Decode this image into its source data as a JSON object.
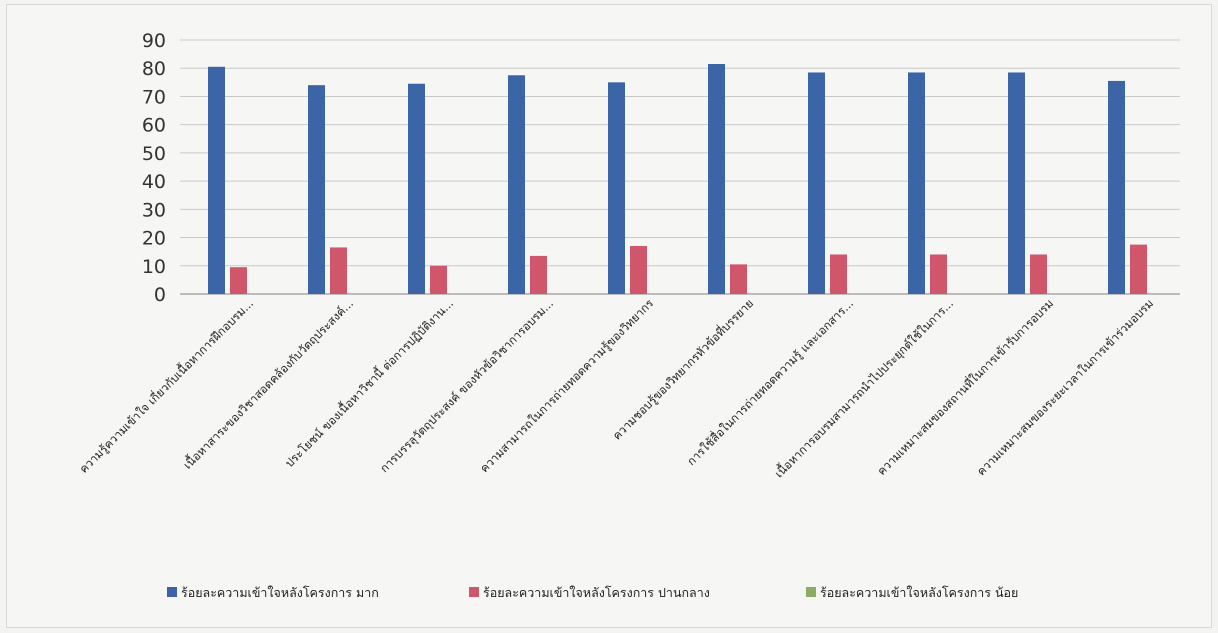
{
  "chart_data": {
    "type": "bar",
    "categories": [
      "ความรู้ความเข้าใจ เกี่ยวกับเนื้อหาการฝึกอบรม...",
      "เนื้อหาสาระของวิชาสอดคล้องกับวัตถุประสงค์...",
      "ประโยชน์ ของเนื้อหาวิชานี้ ต่อการปฏิบัติงาน...",
      "การบรรลุวัตถุประสงค์ ของหัวข้อวิชาการอบรม...",
      "ความสามารถในการถ่ายทอดความรู้ของวิทยากร",
      "ความชอบรู้ของวิทยากรหัวข้อที่บรรยาย",
      "การใช้สื่อในการถ่ายทอดความรู้ และเอกสาร...",
      "เนื้อหาการอบรมสามารถนำไปประยุกต์ใช้ในการ...",
      "ความเหมาะสมของสถานที่ในการเข้ารับการอบรม",
      "ความเหมาะสมของระยะเวลาในการเข้าร่วมอบรม"
    ],
    "series": [
      {
        "name": "ร้อยละความเข้าใจหลังโครงการ มาก",
        "color": "#3b65a6",
        "values": [
          80.5,
          74,
          74.5,
          77.5,
          75,
          81.5,
          78.5,
          78.5,
          78.5,
          75.5
        ]
      },
      {
        "name": "ร้อยละความเข้าใจหลังโครงการ ปานกลาง",
        "color": "#d0566c",
        "values": [
          9.5,
          16.5,
          10,
          13.5,
          17,
          10.5,
          14,
          14,
          14,
          17.5
        ]
      },
      {
        "name": "ร้อยละความเข้าใจหลังโครงการ น้อย",
        "color": "#8cac62",
        "values": [
          0,
          0,
          0,
          0,
          0,
          0,
          0,
          0,
          0,
          0
        ]
      }
    ],
    "yticks": [
      "0",
      "10",
      "20",
      "30",
      "40",
      "50",
      "60",
      "70",
      "80",
      "90"
    ],
    "ylim": [
      0,
      90
    ],
    "grid": true,
    "legend": "bottom"
  }
}
